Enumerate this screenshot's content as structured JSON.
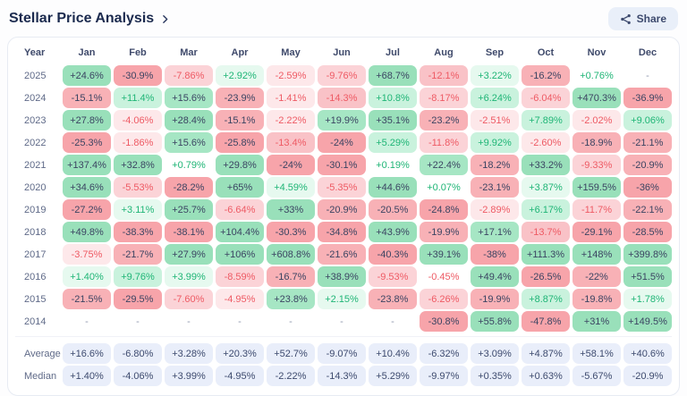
{
  "header": {
    "title": "Stellar Price Analysis",
    "share_label": "Share"
  },
  "icons": {
    "share": "share-nodes",
    "title_link": "chevron-right"
  },
  "table": {
    "columns": [
      "Year",
      "Jan",
      "Feb",
      "Mar",
      "Apr",
      "May",
      "Jun",
      "Jul",
      "Aug",
      "Sep",
      "Oct",
      "Nov",
      "Dec"
    ],
    "rows": [
      {
        "year": "2025",
        "values": [
          "+24.6%",
          "-30.9%",
          "-7.86%",
          "+2.92%",
          "-2.59%",
          "-9.76%",
          "+68.7%",
          "-12.1%",
          "+3.22%",
          "-16.2%",
          "+0.76%",
          "-"
        ]
      },
      {
        "year": "2024",
        "values": [
          "-15.1%",
          "+11.4%",
          "+15.6%",
          "-23.9%",
          "-1.41%",
          "-14.3%",
          "+10.8%",
          "-8.17%",
          "+6.24%",
          "-6.04%",
          "+470.3%",
          "-36.9%"
        ]
      },
      {
        "year": "2023",
        "values": [
          "+27.8%",
          "-4.06%",
          "+28.4%",
          "-15.1%",
          "-2.22%",
          "+19.9%",
          "+35.1%",
          "-23.2%",
          "-2.51%",
          "+7.89%",
          "-2.02%",
          "+9.06%"
        ]
      },
      {
        "year": "2022",
        "values": [
          "-25.3%",
          "-1.86%",
          "+15.6%",
          "-25.8%",
          "-13.4%",
          "-24%",
          "+5.29%",
          "-11.8%",
          "+9.92%",
          "-2.60%",
          "-18.9%",
          "-21.1%"
        ]
      },
      {
        "year": "2021",
        "values": [
          "+137.4%",
          "+32.8%",
          "+0.79%",
          "+29.8%",
          "-24%",
          "-30.1%",
          "+0.19%",
          "+22.4%",
          "-18.2%",
          "+33.2%",
          "-9.33%",
          "-20.9%"
        ]
      },
      {
        "year": "2020",
        "values": [
          "+34.6%",
          "-5.53%",
          "-28.2%",
          "+65%",
          "+4.59%",
          "-5.35%",
          "+44.6%",
          "+0.07%",
          "-23.1%",
          "+3.87%",
          "+159.5%",
          "-36%"
        ]
      },
      {
        "year": "2019",
        "values": [
          "-27.2%",
          "+3.11%",
          "+25.7%",
          "-6.64%",
          "+33%",
          "-20.9%",
          "-20.5%",
          "-24.8%",
          "-2.89%",
          "+6.17%",
          "-11.7%",
          "-22.1%"
        ]
      },
      {
        "year": "2018",
        "values": [
          "+49.8%",
          "-38.3%",
          "-38.1%",
          "+104.4%",
          "-30.3%",
          "-34.8%",
          "+43.9%",
          "-19.9%",
          "+17.1%",
          "-13.7%",
          "-29.1%",
          "-28.5%"
        ]
      },
      {
        "year": "2017",
        "values": [
          "-3.75%",
          "-21.7%",
          "+27.9%",
          "+106%",
          "+608.8%",
          "-21.6%",
          "-40.3%",
          "+39.1%",
          "-38%",
          "+111.3%",
          "+148%",
          "+399.8%"
        ]
      },
      {
        "year": "2016",
        "values": [
          "+1.40%",
          "+9.76%",
          "+3.99%",
          "-8.59%",
          "-16.7%",
          "+38.9%",
          "-9.53%",
          "-0.45%",
          "+49.4%",
          "-26.5%",
          "-22%",
          "+51.5%"
        ]
      },
      {
        "year": "2015",
        "values": [
          "-21.5%",
          "-29.5%",
          "-7.60%",
          "-4.95%",
          "+23.8%",
          "+2.15%",
          "-23.8%",
          "-6.26%",
          "-19.9%",
          "+8.87%",
          "-19.8%",
          "+1.78%"
        ]
      },
      {
        "year": "2014",
        "values": [
          "-",
          "-",
          "-",
          "-",
          "-",
          "-",
          "-",
          "-30.8%",
          "+55.8%",
          "-47.8%",
          "+31%",
          "+149.5%"
        ]
      }
    ],
    "summary": [
      {
        "label": "Average",
        "values": [
          "+16.6%",
          "-6.80%",
          "+3.28%",
          "+20.3%",
          "+52.7%",
          "-9.07%",
          "+10.4%",
          "-6.32%",
          "+3.09%",
          "+4.87%",
          "+58.1%",
          "+40.6%"
        ]
      },
      {
        "label": "Median",
        "values": [
          "+1.40%",
          "-4.06%",
          "+3.99%",
          "-4.95%",
          "-2.22%",
          "-14.3%",
          "+5.29%",
          "-9.97%",
          "+0.35%",
          "+0.63%",
          "-5.67%",
          "-20.9%"
        ]
      }
    ]
  },
  "chart_data": {
    "type": "heatmap",
    "title": "Stellar Price Analysis",
    "unit": "% monthly return",
    "x_labels": [
      "Jan",
      "Feb",
      "Mar",
      "Apr",
      "May",
      "Jun",
      "Jul",
      "Aug",
      "Sep",
      "Oct",
      "Nov",
      "Dec"
    ],
    "y_labels": [
      "2025",
      "2024",
      "2023",
      "2022",
      "2021",
      "2020",
      "2019",
      "2018",
      "2017",
      "2016",
      "2015",
      "2014"
    ],
    "values": [
      [
        24.6,
        -30.9,
        -7.86,
        2.92,
        -2.59,
        -9.76,
        68.7,
        -12.1,
        3.22,
        -16.2,
        0.76,
        null
      ],
      [
        -15.1,
        11.4,
        15.6,
        -23.9,
        -1.41,
        -14.3,
        10.8,
        -8.17,
        6.24,
        -6.04,
        470.3,
        -36.9
      ],
      [
        27.8,
        -4.06,
        28.4,
        -15.1,
        -2.22,
        19.9,
        35.1,
        -23.2,
        -2.51,
        7.89,
        -2.02,
        9.06
      ],
      [
        -25.3,
        -1.86,
        15.6,
        -25.8,
        -13.4,
        -24,
        5.29,
        -11.8,
        9.92,
        -2.6,
        -18.9,
        -21.1
      ],
      [
        137.4,
        32.8,
        0.79,
        29.8,
        -24,
        -30.1,
        0.19,
        22.4,
        -18.2,
        33.2,
        -9.33,
        -20.9
      ],
      [
        34.6,
        -5.53,
        -28.2,
        65,
        4.59,
        -5.35,
        44.6,
        0.07,
        -23.1,
        3.87,
        159.5,
        -36
      ],
      [
        -27.2,
        3.11,
        25.7,
        -6.64,
        33,
        -20.9,
        -20.5,
        -24.8,
        -2.89,
        6.17,
        -11.7,
        -22.1
      ],
      [
        49.8,
        -38.3,
        -38.1,
        104.4,
        -30.3,
        -34.8,
        43.9,
        -19.9,
        17.1,
        -13.7,
        -29.1,
        -28.5
      ],
      [
        -3.75,
        -21.7,
        27.9,
        106,
        608.8,
        -21.6,
        -40.3,
        39.1,
        -38,
        111.3,
        148,
        399.8
      ],
      [
        1.4,
        9.76,
        3.99,
        -8.59,
        -16.7,
        38.9,
        -9.53,
        -0.45,
        49.4,
        -26.5,
        -22,
        51.5
      ],
      [
        -21.5,
        -29.5,
        -7.6,
        -4.95,
        23.8,
        2.15,
        -23.8,
        -6.26,
        -19.9,
        8.87,
        -19.8,
        1.78
      ],
      [
        null,
        null,
        null,
        null,
        null,
        null,
        null,
        -30.8,
        55.8,
        -47.8,
        31,
        149.5
      ]
    ],
    "summary": {
      "average": [
        16.6,
        -6.8,
        3.28,
        20.3,
        52.7,
        -9.07,
        10.4,
        -6.32,
        3.09,
        4.87,
        58.1,
        40.6
      ],
      "median": [
        1.4,
        -4.06,
        3.99,
        -4.95,
        -2.22,
        -14.3,
        5.29,
        -9.97,
        0.35,
        0.63,
        -5.67,
        -20.9
      ]
    },
    "legend_position": "none",
    "grid": false
  },
  "colors": {
    "page_bg": "#fdfdfe",
    "card_bg": "#ffffff",
    "card_border": "#e7ebf3",
    "title_text": "#1b2a4e",
    "header_text": "#3f4a6b",
    "year_text": "#5f6a88",
    "dark_text": "#3b4462",
    "muted_text": "#8f97ad",
    "green_text": "#1fb576",
    "red_text": "#ee5a64",
    "g1": "#e6f9ef",
    "g2": "#c9f2dd",
    "g3": "#b6edd0",
    "g4": "#a6e6c4",
    "g5": "#99e0ba",
    "r1": "#fde8ea",
    "r2": "#fbd3d7",
    "r3": "#f9c2c7",
    "r4": "#f8b1b6",
    "r5": "#f7a4aa",
    "sum_bg": "#e9eefa",
    "sum_text": "#3d4a6e",
    "share_bg": "#e9eff9",
    "share_text": "#3d4a6e",
    "divider": "#f0f2f7"
  }
}
